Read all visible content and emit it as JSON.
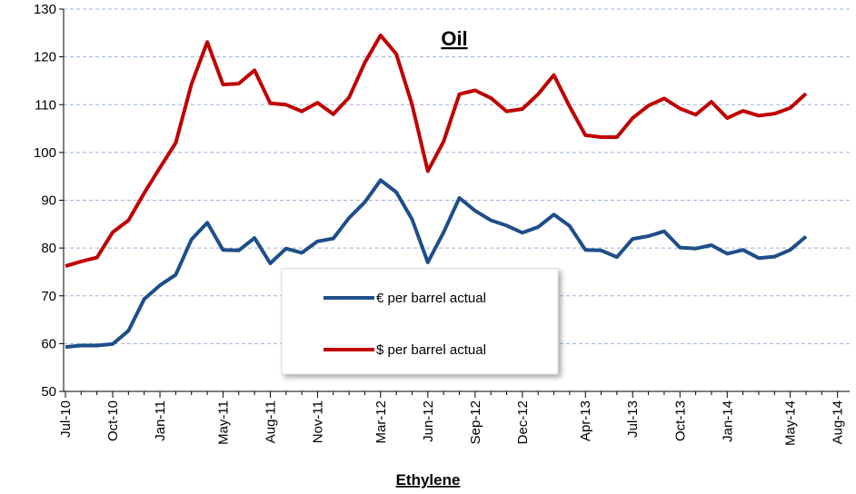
{
  "chart_data": {
    "type": "line",
    "title": "Oil",
    "x_label": "Ethylene",
    "categories": [
      "Jul-10",
      null,
      null,
      "Oct-10",
      null,
      null,
      "Jan-11",
      null,
      null,
      null,
      "May-11",
      null,
      null,
      "Aug-11",
      null,
      null,
      "Nov-11",
      null,
      null,
      null,
      "Mar-12",
      null,
      null,
      "Jun-12",
      null,
      null,
      "Sep-12",
      null,
      null,
      "Dec-12",
      null,
      null,
      null,
      "Apr-13",
      null,
      null,
      "Jul-13",
      null,
      null,
      "Oct-13",
      null,
      null,
      "Jan-14",
      null,
      null,
      null,
      "May-14",
      null,
      null,
      "Aug-14"
    ],
    "series": [
      {
        "name": "€ per barrel actual",
        "color": "#1f4e89",
        "values": [
          59.3,
          59.6,
          59.6,
          59.9,
          62.7,
          69.3,
          72.2,
          74.4,
          81.8,
          85.3,
          79.6,
          79.5,
          82.1,
          76.8,
          79.9,
          79.0,
          81.4,
          82.0,
          86.3,
          89.6,
          94.2,
          91.7,
          86.0,
          77.0,
          83.3,
          90.5,
          87.8,
          85.8,
          84.7,
          83.2,
          84.4,
          87.0,
          84.6,
          79.6,
          79.5,
          78.1,
          81.9,
          82.5,
          83.5,
          80.1,
          79.9,
          80.6,
          78.8,
          79.6,
          77.9,
          78.2,
          79.6,
          82.4,
          null,
          null
        ]
      },
      {
        "name": "$ per barrel actual",
        "color": "#c00000",
        "values": [
          76.2,
          77.2,
          78.0,
          83.3,
          85.8,
          91.5,
          96.8,
          102.0,
          114.3,
          123.1,
          114.2,
          114.4,
          117.2,
          110.3,
          110.0,
          108.6,
          110.4,
          108.0,
          111.5,
          118.8,
          124.5,
          120.6,
          110.0,
          96.1,
          102.3,
          112.2,
          113.0,
          111.4,
          108.6,
          109.1,
          112.2,
          116.2,
          109.6,
          103.6,
          103.2,
          103.2,
          107.2,
          109.8,
          111.3,
          109.2,
          107.9,
          110.6,
          107.2,
          108.7,
          107.7,
          108.1,
          109.3,
          112.3,
          null,
          null
        ]
      }
    ],
    "ylim": [
      50,
      130
    ],
    "yticks": [
      50,
      60,
      70,
      80,
      90,
      100,
      110,
      120,
      130
    ],
    "grid": true
  }
}
